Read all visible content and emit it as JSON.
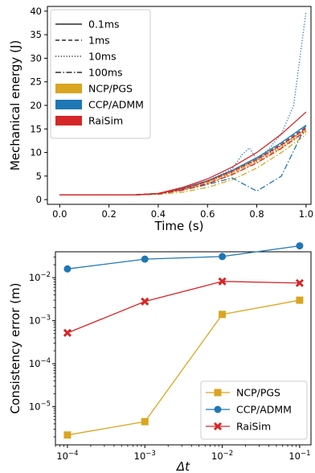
{
  "chart_data": [
    {
      "type": "line",
      "xlabel": "Time (s)",
      "ylabel": "Mechanical energy (J)",
      "xlim": [
        -0.05,
        1.02
      ],
      "ylim": [
        -1,
        41
      ],
      "xticks": [
        0.0,
        0.2,
        0.4,
        0.6,
        0.8,
        1.0
      ],
      "xtick_labels": [
        "0.0",
        "0.2",
        "0.4",
        "0.6",
        "0.8",
        "1.0"
      ],
      "yticks": [
        0,
        5,
        10,
        15,
        20,
        25,
        30,
        35,
        40
      ],
      "ytick_labels": [
        "0",
        "5",
        "10",
        "15",
        "20",
        "25",
        "30",
        "35",
        "40"
      ],
      "legend_position": "upper-left",
      "legend_styles": [
        {
          "name": "0.1ms",
          "dash": "solid"
        },
        {
          "name": "1ms",
          "dash": "dashed"
        },
        {
          "name": "10ms",
          "dash": "dotted"
        },
        {
          "name": "100ms",
          "dash": "dashdot"
        }
      ],
      "legend_solvers": [
        {
          "name": "NCP/PGS",
          "color": "#daa520"
        },
        {
          "name": "CCP/ADMM",
          "color": "#1f77b4"
        },
        {
          "name": "RaiSim",
          "color": "#d62728"
        }
      ],
      "series": [
        {
          "solver": "NCP/PGS",
          "step": "0.1ms",
          "color": "#daa520",
          "dash": "solid",
          "x": [
            0,
            0.3,
            0.4,
            0.5,
            0.6,
            0.7,
            0.8,
            0.9,
            1.0
          ],
          "y": [
            1,
            1,
            1.3,
            2.3,
            3.8,
            6.0,
            8.6,
            11.6,
            15.0
          ]
        },
        {
          "solver": "NCP/PGS",
          "step": "1ms",
          "color": "#daa520",
          "dash": "dashed",
          "x": [
            0,
            0.3,
            0.4,
            0.5,
            0.6,
            0.7,
            0.8,
            0.9,
            1.0
          ],
          "y": [
            1,
            1,
            1.25,
            2.1,
            3.5,
            5.6,
            8.1,
            11.1,
            14.6
          ]
        },
        {
          "solver": "NCP/PGS",
          "step": "10ms",
          "color": "#daa520",
          "dash": "dotted",
          "x": [
            0,
            0.3,
            0.4,
            0.5,
            0.6,
            0.7,
            0.8,
            0.9,
            1.0
          ],
          "y": [
            1,
            1,
            1.2,
            2.0,
            3.3,
            5.3,
            7.8,
            10.8,
            14.3
          ]
        },
        {
          "solver": "NCP/PGS",
          "step": "100ms",
          "color": "#daa520",
          "dash": "dashdot",
          "x": [
            0,
            0.3,
            0.4,
            0.5,
            0.6,
            0.7,
            0.8,
            0.9,
            1.0
          ],
          "y": [
            1,
            1,
            1.1,
            1.6,
            2.6,
            4.2,
            6.7,
            10.0,
            13.8
          ]
        },
        {
          "solver": "CCP/ADMM",
          "step": "0.1ms",
          "color": "#1f77b4",
          "dash": "solid",
          "x": [
            0,
            0.3,
            0.4,
            0.5,
            0.6,
            0.7,
            0.8,
            0.9,
            1.0
          ],
          "y": [
            1,
            1,
            1.3,
            2.4,
            4.0,
            6.2,
            8.9,
            12.1,
            15.8
          ]
        },
        {
          "solver": "CCP/ADMM",
          "step": "1ms",
          "color": "#1f77b4",
          "dash": "dashed",
          "x": [
            0,
            0.3,
            0.4,
            0.5,
            0.6,
            0.7,
            0.8,
            0.9,
            1.0
          ],
          "y": [
            1,
            1,
            1.3,
            2.3,
            3.9,
            6.0,
            8.6,
            11.8,
            15.5
          ]
        },
        {
          "solver": "CCP/ADMM",
          "step": "10ms",
          "color": "#1f77b4",
          "dash": "dotted",
          "x": [
            0,
            0.3,
            0.4,
            0.5,
            0.6,
            0.7,
            0.74,
            0.77,
            0.8,
            0.85,
            0.9,
            0.95,
            0.98,
            1.0
          ],
          "y": [
            1,
            1,
            1.3,
            2.4,
            4.0,
            6.5,
            9.5,
            11.0,
            8.5,
            10.8,
            14.0,
            20.0,
            32.0,
            40.0
          ]
        },
        {
          "solver": "CCP/ADMM",
          "step": "100ms",
          "color": "#1f77b4",
          "dash": "dashdot",
          "x": [
            0,
            0.3,
            0.4,
            0.5,
            0.6,
            0.7,
            0.8,
            0.9,
            1.0
          ],
          "y": [
            1,
            1,
            1.2,
            2.0,
            3.2,
            4.6,
            1.8,
            5.0,
            15.8
          ]
        },
        {
          "solver": "RaiSim",
          "step": "0.1ms",
          "color": "#d62728",
          "dash": "solid",
          "x": [
            0,
            0.3,
            0.4,
            0.5,
            0.6,
            0.7,
            0.8,
            0.9,
            1.0
          ],
          "y": [
            1,
            1,
            1.3,
            2.6,
            4.4,
            6.9,
            10.0,
            13.9,
            18.6
          ]
        },
        {
          "solver": "RaiSim",
          "step": "1ms",
          "color": "#d62728",
          "dash": "dashed",
          "x": [
            0,
            0.3,
            0.4,
            0.5,
            0.6,
            0.7,
            0.8,
            0.9,
            1.0
          ],
          "y": [
            1,
            1,
            1.3,
            2.3,
            3.9,
            6.0,
            8.5,
            11.6,
            15.2
          ]
        },
        {
          "solver": "RaiSim",
          "step": "10ms",
          "color": "#d62728",
          "dash": "dotted",
          "x": [
            0,
            0.3,
            0.4,
            0.5,
            0.6,
            0.7,
            0.8,
            0.9,
            1.0
          ],
          "y": [
            1,
            1,
            1.25,
            2.2,
            3.8,
            5.8,
            8.3,
            11.4,
            15.0
          ]
        },
        {
          "solver": "RaiSim",
          "step": "100ms",
          "color": "#d62728",
          "dash": "dashdot",
          "x": [
            0,
            0.3,
            0.4,
            0.5,
            0.6,
            0.7,
            0.8,
            0.9,
            1.0
          ],
          "y": [
            1,
            1,
            1.2,
            2.0,
            3.4,
            5.3,
            7.8,
            10.9,
            14.6
          ]
        }
      ]
    },
    {
      "type": "line",
      "xscale": "log",
      "yscale": "log",
      "xlabel": "Δt",
      "ylabel": "Consistency error (m)",
      "xlim": [
        7e-05,
        0.14
      ],
      "ylim": [
        1.3e-06,
        0.04
      ],
      "xticks": [
        0.0001,
        0.001,
        0.01,
        0.1
      ],
      "xtick_labels": [
        "10^-4",
        "10^-3",
        "10^-2",
        "10^-1"
      ],
      "yticks": [
        1e-05,
        0.0001,
        0.001,
        0.01
      ],
      "ytick_labels": [
        "10^-5",
        "10^-4",
        "10^-3",
        "10^-2"
      ],
      "legend_position": "lower-right",
      "x": [
        0.0001,
        0.001,
        0.01,
        0.1
      ],
      "series": [
        {
          "name": "NCP/PGS",
          "color": "#daa520",
          "marker": "square",
          "values": [
            2.2e-06,
            4.5e-06,
            0.0014,
            0.003
          ]
        },
        {
          "name": "CCP/ADMM",
          "color": "#1f77b4",
          "marker": "circle",
          "values": [
            0.016,
            0.027,
            0.031,
            0.055
          ]
        },
        {
          "name": "RaiSim",
          "color": "#d62728",
          "marker": "x",
          "values": [
            0.00052,
            0.0028,
            0.0082,
            0.0075
          ]
        }
      ]
    }
  ]
}
